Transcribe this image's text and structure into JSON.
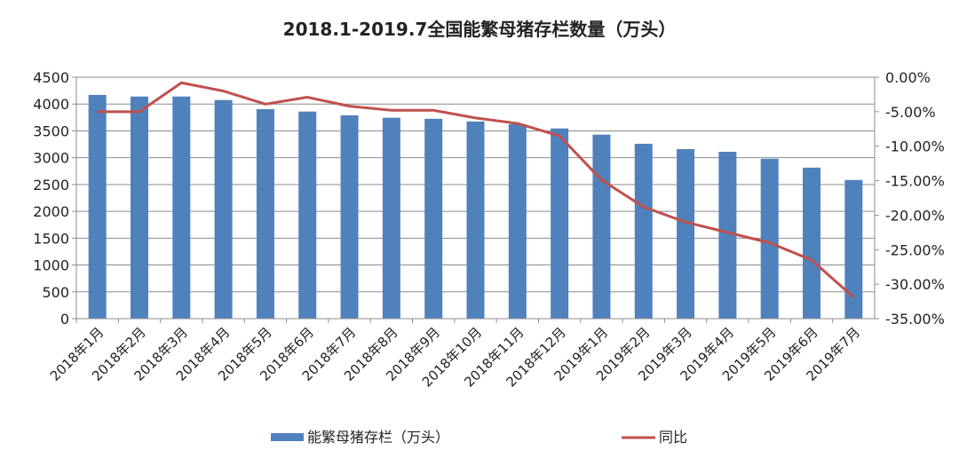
{
  "chart_data": {
    "type": "bar+line",
    "title": "2018.1-2019.7全国能繁母猪存栏数量（万头）",
    "categories": [
      "2018年1月",
      "2018年2月",
      "2018年3月",
      "2018年4月",
      "2018年5月",
      "2018年6月",
      "2018年7月",
      "2018年8月",
      "2018年9月",
      "2018年10月",
      "2018年11月",
      "2018年12月",
      "2019年1月",
      "2019年2月",
      "2019年3月",
      "2019年4月",
      "2019年5月",
      "2019年6月",
      "2019年7月"
    ],
    "series": [
      {
        "name": "能繁母猪存栏（万头）",
        "type": "bar",
        "axis": "left",
        "color": "#4f81bd",
        "values": [
          4170,
          4140,
          4140,
          4075,
          3905,
          3860,
          3790,
          3745,
          3725,
          3675,
          3625,
          3545,
          3430,
          3260,
          3160,
          3110,
          2980,
          2815,
          2585
        ]
      },
      {
        "name": "同比",
        "type": "line",
        "axis": "right",
        "color": "#c0504d",
        "values": [
          -5.0,
          -5.0,
          -0.8,
          -2.0,
          -3.9,
          -2.9,
          -4.2,
          -4.8,
          -4.8,
          -5.9,
          -6.7,
          -8.5,
          -14.9,
          -18.8,
          -21.0,
          -22.5,
          -24.0,
          -26.5,
          -31.9
        ]
      }
    ],
    "y_left": {
      "range": [
        0,
        4500
      ],
      "ticks": [
        "0",
        "500",
        "1000",
        "1500",
        "2000",
        "2500",
        "3000",
        "3500",
        "4000",
        "4500"
      ]
    },
    "y_right": {
      "range": [
        -35,
        0
      ],
      "unit": "%",
      "ticks": [
        "0.00%",
        "-5.00%",
        "-10.00%",
        "-15.00%",
        "-20.00%",
        "-25.00%",
        "-30.00%",
        "-35.00%"
      ]
    },
    "grid": true,
    "legend": "bottom"
  }
}
